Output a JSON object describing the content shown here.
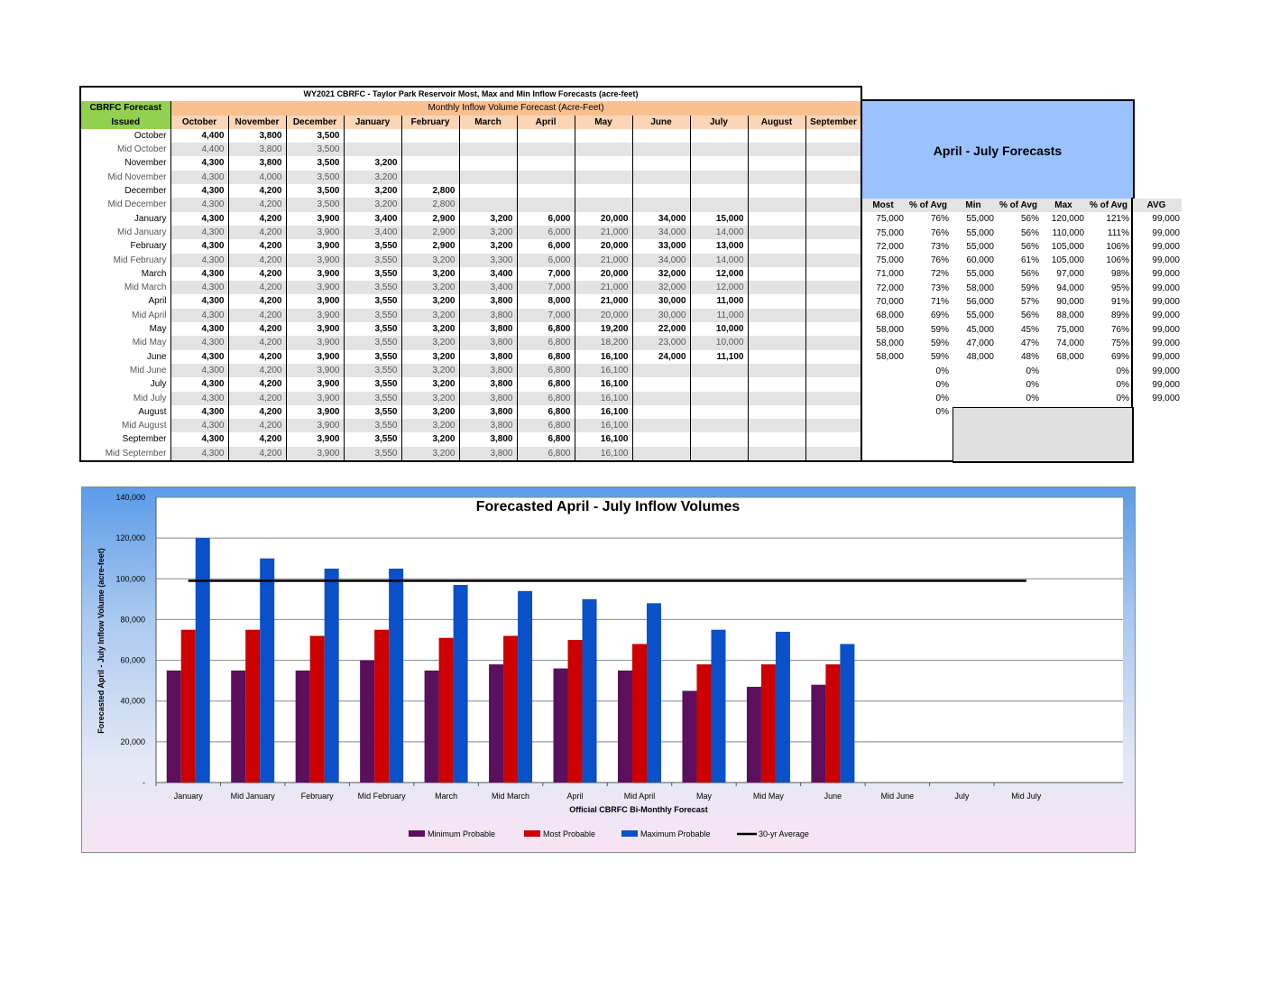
{
  "table": {
    "title": "WY2021 CBRFC - Taylor Park Reservoir Most, Max and Min Inflow Forecasts (acre-feet)",
    "cbrfc_label": "CBRFC Forecast",
    "issued_label": "Issued",
    "monthly_header": "Monthly Inflow Volume Forecast (Acre-Feet)",
    "months": [
      "October",
      "November",
      "December",
      "January",
      "February",
      "March",
      "April",
      "May",
      "June",
      "July",
      "August",
      "September"
    ],
    "rows": [
      {
        "issued": "October",
        "bold": true,
        "values": [
          "4,400",
          "3,800",
          "3,500",
          "",
          "",
          "",
          "",
          "",
          "",
          "",
          "",
          ""
        ]
      },
      {
        "issued": "Mid October",
        "bold": false,
        "values": [
          "4,400",
          "3,800",
          "3,500",
          "",
          "",
          "",
          "",
          "",
          "",
          "",
          "",
          ""
        ]
      },
      {
        "issued": "November",
        "bold": true,
        "values": [
          "4,300",
          "3,800",
          "3,500",
          "3,200",
          "",
          "",
          "",
          "",
          "",
          "",
          "",
          ""
        ]
      },
      {
        "issued": "Mid November",
        "bold": false,
        "values": [
          "4,300",
          "4,000",
          "3,500",
          "3,200",
          "",
          "",
          "",
          "",
          "",
          "",
          "",
          ""
        ]
      },
      {
        "issued": "December",
        "bold": true,
        "values": [
          "4,300",
          "4,200",
          "3,500",
          "3,200",
          "2,800",
          "",
          "",
          "",
          "",
          "",
          "",
          ""
        ]
      },
      {
        "issued": "Mid December",
        "bold": false,
        "values": [
          "4,300",
          "4,200",
          "3,500",
          "3,200",
          "2,800",
          "",
          "",
          "",
          "",
          "",
          "",
          ""
        ]
      },
      {
        "issued": "January",
        "bold": true,
        "values": [
          "4,300",
          "4,200",
          "3,900",
          "3,400",
          "2,900",
          "3,200",
          "6,000",
          "20,000",
          "34,000",
          "15,000",
          "",
          ""
        ]
      },
      {
        "issued": "Mid January",
        "bold": false,
        "values": [
          "4,300",
          "4,200",
          "3,900",
          "3,400",
          "2,900",
          "3,200",
          "6,000",
          "21,000",
          "34,000",
          "14,000",
          "",
          ""
        ]
      },
      {
        "issued": "February",
        "bold": true,
        "values": [
          "4,300",
          "4,200",
          "3,900",
          "3,550",
          "2,900",
          "3,200",
          "6,000",
          "20,000",
          "33,000",
          "13,000",
          "",
          ""
        ]
      },
      {
        "issued": "Mid February",
        "bold": false,
        "values": [
          "4,300",
          "4,200",
          "3,900",
          "3,550",
          "3,200",
          "3,300",
          "6,000",
          "21,000",
          "34,000",
          "14,000",
          "",
          ""
        ]
      },
      {
        "issued": "March",
        "bold": true,
        "values": [
          "4,300",
          "4,200",
          "3,900",
          "3,550",
          "3,200",
          "3,400",
          "7,000",
          "20,000",
          "32,000",
          "12,000",
          "",
          ""
        ]
      },
      {
        "issued": "Mid March",
        "bold": false,
        "values": [
          "4,300",
          "4,200",
          "3,900",
          "3,550",
          "3,200",
          "3,400",
          "7,000",
          "21,000",
          "32,000",
          "12,000",
          "",
          ""
        ]
      },
      {
        "issued": "April",
        "bold": true,
        "values": [
          "4,300",
          "4,200",
          "3,900",
          "3,550",
          "3,200",
          "3,800",
          "8,000",
          "21,000",
          "30,000",
          "11,000",
          "",
          ""
        ]
      },
      {
        "issued": "Mid April",
        "bold": false,
        "values": [
          "4,300",
          "4,200",
          "3,900",
          "3,550",
          "3,200",
          "3,800",
          "7,000",
          "20,000",
          "30,000",
          "11,000",
          "",
          ""
        ]
      },
      {
        "issued": "May",
        "bold": true,
        "values": [
          "4,300",
          "4,200",
          "3,900",
          "3,550",
          "3,200",
          "3,800",
          "6,800",
          "19,200",
          "22,000",
          "10,000",
          "",
          ""
        ]
      },
      {
        "issued": "Mid May",
        "bold": false,
        "values": [
          "4,300",
          "4,200",
          "3,900",
          "3,550",
          "3,200",
          "3,800",
          "6,800",
          "18,200",
          "23,000",
          "10,000",
          "",
          ""
        ]
      },
      {
        "issued": "June",
        "bold": true,
        "values": [
          "4,300",
          "4,200",
          "3,900",
          "3,550",
          "3,200",
          "3,800",
          "6,800",
          "16,100",
          "24,000",
          "11,100",
          "",
          ""
        ]
      },
      {
        "issued": "Mid June",
        "bold": false,
        "values": [
          "4,300",
          "4,200",
          "3,900",
          "3,550",
          "3,200",
          "3,800",
          "6,800",
          "16,100",
          "",
          "",
          "",
          ""
        ]
      },
      {
        "issued": "July",
        "bold": true,
        "values": [
          "4,300",
          "4,200",
          "3,900",
          "3,550",
          "3,200",
          "3,800",
          "6,800",
          "16,100",
          "",
          "",
          "",
          ""
        ]
      },
      {
        "issued": "Mid July",
        "bold": false,
        "values": [
          "4,300",
          "4,200",
          "3,900",
          "3,550",
          "3,200",
          "3,800",
          "6,800",
          "16,100",
          "",
          "",
          "",
          ""
        ]
      },
      {
        "issued": "August",
        "bold": true,
        "values": [
          "4,300",
          "4,200",
          "3,900",
          "3,550",
          "3,200",
          "3,800",
          "6,800",
          "16,100",
          "",
          "",
          "",
          ""
        ]
      },
      {
        "issued": "Mid August",
        "bold": false,
        "values": [
          "4,300",
          "4,200",
          "3,900",
          "3,550",
          "3,200",
          "3,800",
          "6,800",
          "16,100",
          "",
          "",
          "",
          ""
        ]
      },
      {
        "issued": "September",
        "bold": true,
        "values": [
          "4,300",
          "4,200",
          "3,900",
          "3,550",
          "3,200",
          "3,800",
          "6,800",
          "16,100",
          "",
          "",
          "",
          ""
        ]
      },
      {
        "issued": "Mid September",
        "bold": false,
        "values": [
          "4,300",
          "4,200",
          "3,900",
          "3,550",
          "3,200",
          "3,800",
          "6,800",
          "16,100",
          "",
          "",
          "",
          ""
        ]
      }
    ]
  },
  "side": {
    "title": "April - July Forecasts",
    "headers": [
      "Most",
      "% of Avg",
      "Min",
      "% of Avg",
      "Max",
      "% of Avg",
      "AVG"
    ],
    "rows": [
      [
        "75,000",
        "76%",
        "55,000",
        "56%",
        "120,000",
        "121%",
        "99,000"
      ],
      [
        "75,000",
        "76%",
        "55,000",
        "56%",
        "110,000",
        "111%",
        "99,000"
      ],
      [
        "72,000",
        "73%",
        "55,000",
        "56%",
        "105,000",
        "106%",
        "99,000"
      ],
      [
        "75,000",
        "76%",
        "60,000",
        "61%",
        "105,000",
        "106%",
        "99,000"
      ],
      [
        "71,000",
        "72%",
        "55,000",
        "56%",
        "97,000",
        "98%",
        "99,000"
      ],
      [
        "72,000",
        "73%",
        "58,000",
        "59%",
        "94,000",
        "95%",
        "99,000"
      ],
      [
        "70,000",
        "71%",
        "56,000",
        "57%",
        "90,000",
        "91%",
        "99,000"
      ],
      [
        "68,000",
        "69%",
        "55,000",
        "56%",
        "88,000",
        "89%",
        "99,000"
      ],
      [
        "58,000",
        "59%",
        "45,000",
        "45%",
        "75,000",
        "76%",
        "99,000"
      ],
      [
        "58,000",
        "59%",
        "47,000",
        "47%",
        "74,000",
        "75%",
        "99,000"
      ],
      [
        "58,000",
        "59%",
        "48,000",
        "48%",
        "68,000",
        "69%",
        "99,000"
      ],
      [
        "",
        "0%",
        "",
        "0%",
        "",
        "0%",
        "99,000"
      ],
      [
        "",
        "0%",
        "",
        "0%",
        "",
        "0%",
        "99,000"
      ],
      [
        "",
        "0%",
        "",
        "0%",
        "",
        "0%",
        "99,000"
      ],
      [
        "",
        "0%",
        "",
        "",
        "",
        "",
        ""
      ]
    ]
  },
  "chart_data": {
    "type": "bar",
    "title": "Forecasted April - July Inflow Volumes",
    "xlabel": "Official CBRFC Bi-Monthly Forecast",
    "ylabel": "Forecasted April - July Inflow Volume (acre-feet)",
    "ylim": [
      0,
      140000
    ],
    "ytick_step": 20000,
    "yticks": [
      "-",
      "20,000",
      "40,000",
      "60,000",
      "80,000",
      "100,000",
      "120,000",
      "140,000"
    ],
    "categories": [
      "January",
      "Mid January",
      "February",
      "Mid February",
      "March",
      "Mid March",
      "April",
      "Mid April",
      "May",
      "Mid May",
      "June",
      "Mid June",
      "July",
      "Mid July"
    ],
    "series": [
      {
        "name": "Minimum Probable",
        "color": "#5c0f5c",
        "values": [
          55000,
          55000,
          55000,
          60000,
          55000,
          58000,
          56000,
          55000,
          45000,
          47000,
          48000,
          null,
          null,
          null
        ]
      },
      {
        "name": "Most Probable",
        "color": "#cc0000",
        "values": [
          75000,
          75000,
          72000,
          75000,
          71000,
          72000,
          70000,
          68000,
          58000,
          58000,
          58000,
          null,
          null,
          null
        ]
      },
      {
        "name": "Maximum Probable",
        "color": "#0a50c8",
        "values": [
          120000,
          110000,
          105000,
          105000,
          97000,
          94000,
          90000,
          88000,
          75000,
          74000,
          68000,
          null,
          null,
          null
        ]
      }
    ],
    "average": {
      "name": "30-yr Average",
      "value": 99000,
      "color": "#000000"
    },
    "grid": true,
    "legend": "bottom"
  }
}
